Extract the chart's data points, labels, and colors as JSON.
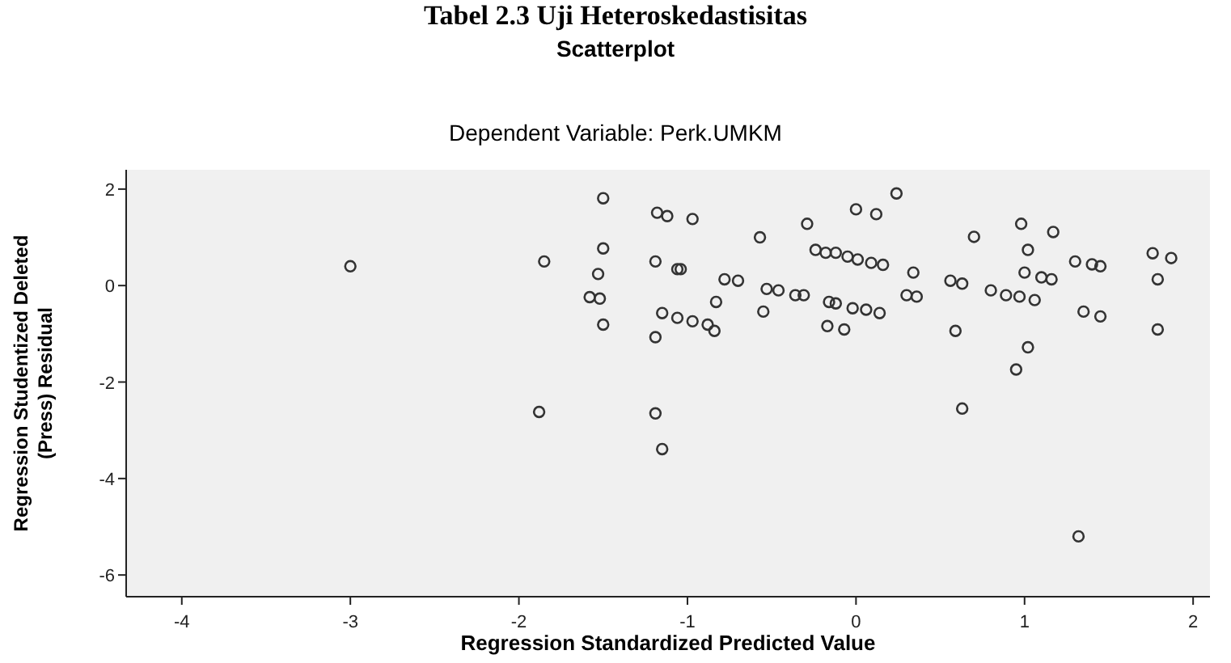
{
  "chart_data": {
    "type": "scatter",
    "title": "Tabel 2.3 Uji Heteroskedastisitas",
    "subtitle": "Scatterplot",
    "annotations": [
      "Dependent Variable: Perk.UMKM"
    ],
    "xlabel": "Regression Standardized Predicted Value",
    "ylabel": "Regression Studentized Deleted (Press) Residual",
    "xlim": [
      -4.33,
      2.1
    ],
    "ylim": [
      -6.45,
      2.4
    ],
    "xticks": [
      -4,
      -3,
      -2,
      -1,
      0,
      1,
      2
    ],
    "yticks": [
      -6,
      -4,
      -2,
      0,
      2
    ],
    "grid": false,
    "marker": "circle",
    "series": [
      {
        "color": "#333333",
        "x": [
          -3.0,
          -1.85,
          -1.88,
          -1.5,
          -1.18,
          -1.12,
          -1.5,
          -1.19,
          -1.06,
          -1.53,
          -1.58,
          -1.52,
          -1.15,
          -1.06,
          -1.5,
          -1.19,
          -1.19,
          -1.15,
          -0.97,
          -0.57,
          -0.29,
          0.0,
          0.12,
          0.24,
          -1.04,
          -0.78,
          -0.7,
          -0.83,
          -0.55,
          -0.53,
          -0.46,
          -0.36,
          -0.31,
          -0.24,
          -0.18,
          -0.12,
          -0.05,
          0.01,
          0.09,
          0.16,
          0.34,
          -0.16,
          -0.12,
          -0.02,
          0.06,
          0.14,
          -0.17,
          -0.07,
          0.3,
          0.36,
          -0.97,
          -0.88,
          -0.84,
          0.56,
          0.63,
          0.59,
          0.63,
          0.7,
          0.8,
          0.89,
          0.97,
          1.06,
          0.98,
          1.17,
          1.02,
          1.0,
          1.1,
          1.16,
          1.02,
          0.95,
          1.3,
          1.4,
          1.45,
          1.35,
          1.45,
          1.76,
          1.87,
          1.79,
          1.79,
          1.32
        ],
        "values": [
          0.4,
          0.5,
          -2.62,
          1.81,
          1.51,
          1.44,
          0.77,
          0.5,
          0.34,
          0.24,
          -0.24,
          -0.27,
          -0.57,
          -0.67,
          -0.81,
          -1.07,
          -2.65,
          -3.39,
          1.38,
          1.0,
          1.28,
          1.58,
          1.48,
          1.91,
          0.34,
          0.13,
          0.1,
          -0.34,
          -0.54,
          -0.07,
          -0.1,
          -0.2,
          -0.2,
          0.74,
          0.68,
          0.68,
          0.6,
          0.54,
          0.47,
          0.43,
          0.27,
          -0.34,
          -0.37,
          -0.47,
          -0.5,
          -0.57,
          -0.84,
          -0.91,
          -0.2,
          -0.23,
          -0.74,
          -0.81,
          -0.94,
          0.1,
          0.04,
          -0.94,
          -2.55,
          1.01,
          -0.1,
          -0.2,
          -0.23,
          -0.3,
          1.28,
          1.11,
          0.74,
          0.27,
          0.17,
          0.13,
          -1.28,
          -1.74,
          0.5,
          0.44,
          0.4,
          -0.54,
          -0.64,
          0.67,
          0.57,
          0.13,
          -0.91,
          -5.2
        ]
      }
    ]
  }
}
